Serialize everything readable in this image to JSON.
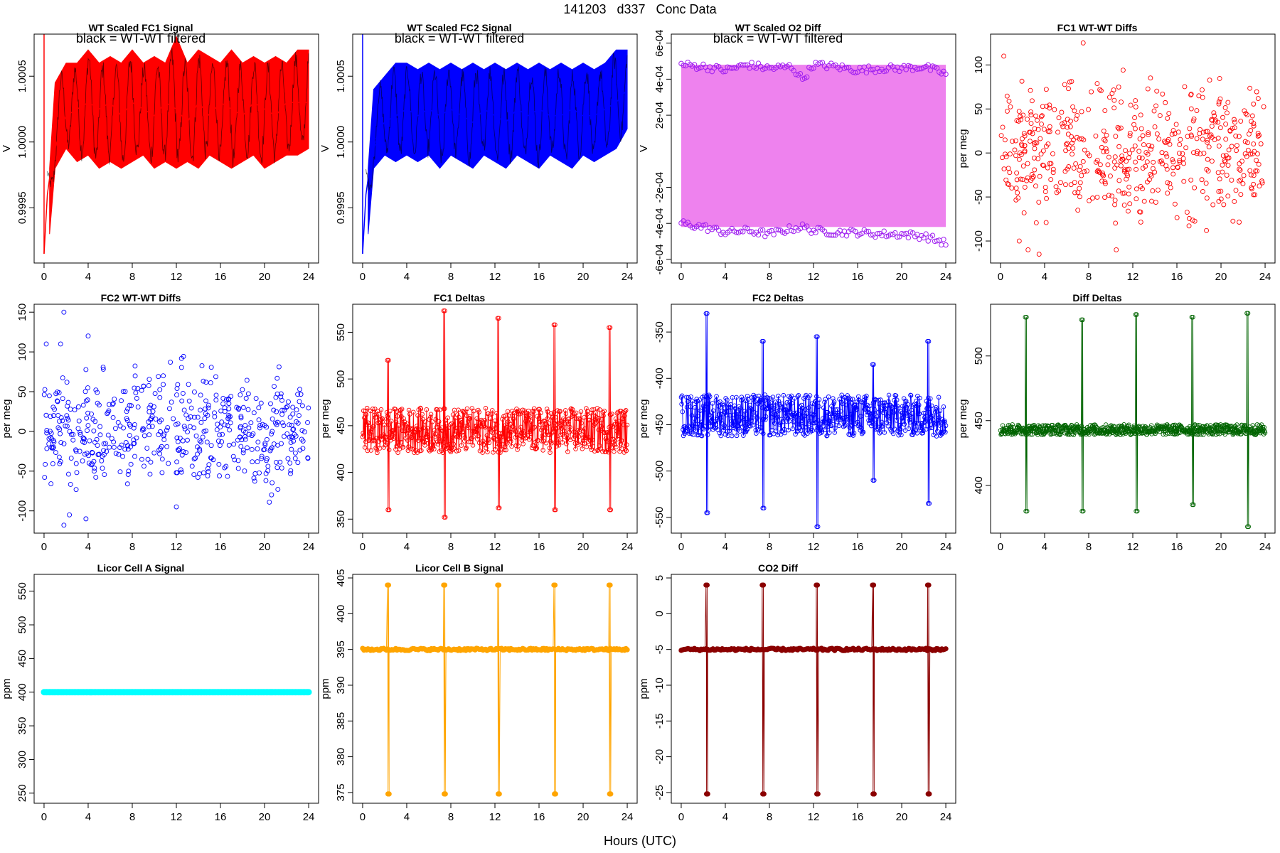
{
  "figure": {
    "title": "141203   d337   Conc Data",
    "xlabel": "Hours (UTC)"
  },
  "chart_data": [
    {
      "type": "line",
      "title": "WT Scaled FC1 Signal",
      "annotation": "black = WT-WT filtered",
      "ylabel": "V",
      "color": "#ff0000",
      "xticks": [
        0,
        4,
        8,
        12,
        16,
        20,
        24
      ],
      "yticks": [
        0.9995,
        1.0,
        1.0005
      ],
      "ytick_labels": [
        "0.9995",
        "1.0000",
        "1.0005"
      ],
      "xlim": [
        -0.9,
        24.9
      ],
      "ylim": [
        0.99908,
        1.00082
      ],
      "series": [
        {
          "x": [
            0,
            0.3,
            0.7,
            1,
            1.5,
            2,
            3,
            4,
            5,
            6,
            7,
            8,
            9,
            10,
            11,
            12,
            13,
            14,
            15,
            16,
            17,
            18,
            19,
            20,
            21,
            22,
            23,
            24
          ],
          "y": [
            0.99915,
            0.9996,
            0.99985,
            0.99995,
            1.0001,
            1.0002,
            1.00025,
            1.0003,
            1.00025,
            1.0003,
            1.0002,
            1.0003,
            1.00025,
            1.0002,
            1.0003,
            1.00025,
            1.00015,
            1.0003,
            1.0002,
            1.0003,
            1.00025,
            1.0002,
            1.0003,
            1.00025,
            1.0002,
            1.0003,
            1.0003,
            1.0003
          ]
        }
      ],
      "envelope": {
        "x": [
          0.5,
          1,
          2,
          3,
          4,
          5,
          6,
          7,
          8,
          9,
          10,
          11,
          12,
          13,
          14,
          15,
          16,
          17,
          18,
          19,
          20,
          21,
          22,
          23,
          24
        ],
        "upper": [
          0.9998,
          1.00045,
          1.0006,
          1.0006,
          1.0007,
          1.0006,
          1.00065,
          1.0006,
          1.0007,
          1.0006,
          1.00065,
          1.0006,
          1.0008,
          1.0006,
          1.0007,
          1.00065,
          1.0006,
          1.0007,
          1.0006,
          1.00065,
          1.0006,
          1.00065,
          1.0006,
          1.0007,
          1.0007
        ],
        "lower": [
          0.9993,
          0.9998,
          0.99995,
          0.99985,
          0.9999,
          0.9998,
          0.99985,
          0.9998,
          0.99985,
          0.9999,
          0.9998,
          0.99985,
          0.9998,
          0.99985,
          0.9998,
          0.9999,
          0.99985,
          0.9998,
          0.99985,
          0.9999,
          0.9998,
          0.99985,
          0.9999,
          0.9999,
          0.99995
        ]
      }
    },
    {
      "type": "line",
      "title": "WT Scaled FC2 Signal",
      "annotation": "black = WT-WT filtered",
      "ylabel": "V",
      "color": "#0000ff",
      "xticks": [
        0,
        4,
        8,
        12,
        16,
        20,
        24
      ],
      "yticks": [
        0.9995,
        1.0,
        1.0005
      ],
      "ytick_labels": [
        "0.9995",
        "1.0000",
        "1.0005"
      ],
      "xlim": [
        -0.9,
        24.9
      ],
      "ylim": [
        0.99908,
        1.00082
      ],
      "series": [
        {
          "x": [
            0,
            0.3,
            0.7,
            1,
            1.5,
            2,
            3,
            4,
            5,
            6,
            7,
            8,
            9,
            10,
            11,
            12,
            13,
            14,
            15,
            16,
            17,
            18,
            19,
            20,
            21,
            22,
            23,
            24
          ],
          "y": [
            0.99915,
            0.9996,
            0.99985,
            0.99995,
            1.0001,
            1.00015,
            1.0002,
            1.00025,
            1.0002,
            1.00025,
            1.0002,
            1.00025,
            1.0002,
            1.00015,
            1.00025,
            1.0002,
            1.00015,
            1.00025,
            1.0002,
            1.00025,
            1.0002,
            1.0002,
            1.00025,
            1.0002,
            1.0002,
            1.00025,
            1.0003,
            1.0004
          ]
        }
      ],
      "envelope": {
        "x": [
          0.5,
          1,
          2,
          3,
          4,
          5,
          6,
          7,
          8,
          9,
          10,
          11,
          12,
          13,
          14,
          15,
          16,
          17,
          18,
          19,
          20,
          21,
          22,
          23,
          24
        ],
        "upper": [
          0.9998,
          1.0004,
          1.0005,
          1.0006,
          1.0006,
          1.00055,
          1.0006,
          1.00055,
          1.0006,
          1.00055,
          1.0006,
          1.00055,
          1.0006,
          1.00055,
          1.0006,
          1.00055,
          1.0006,
          1.00055,
          1.0006,
          1.00055,
          1.0006,
          1.00055,
          1.0006,
          1.0007,
          1.0007
        ],
        "lower": [
          0.9993,
          0.9998,
          0.9999,
          0.99985,
          0.9999,
          0.99985,
          0.9999,
          0.9998,
          0.9999,
          0.99985,
          0.9998,
          0.9999,
          0.99985,
          0.9998,
          0.9999,
          0.99985,
          0.9998,
          0.9999,
          0.99985,
          0.9998,
          0.9999,
          0.99985,
          0.9999,
          0.99995,
          1.0001
        ]
      }
    },
    {
      "type": "line",
      "title": "WT Scaled O2 Diff",
      "annotation": "black = WT-WT filtered",
      "ylabel": "V",
      "color": "#ee82ee",
      "point_color": "#a020f0",
      "xticks": [
        0,
        4,
        8,
        12,
        16,
        20,
        24
      ],
      "yticks": [
        -0.0006,
        -0.0004,
        -0.0002,
        0.0002,
        0.0004,
        0.0006
      ],
      "ytick_labels": [
        "-6e-04",
        "-4e-04",
        "-2e-04",
        "2e-04",
        "4e-04",
        "6e-04"
      ],
      "xlim": [
        -0.9,
        24.9
      ],
      "ylim": [
        -0.00062,
        0.00065
      ],
      "band": [
        -0.00042,
        0.00048
      ],
      "series": [
        {
          "name": "upper",
          "x": [
            0,
            2,
            4,
            6,
            8,
            10,
            11,
            12,
            14,
            16,
            18,
            20,
            22,
            24
          ],
          "y": [
            0.00048,
            0.00047,
            0.00045,
            0.00048,
            0.00046,
            0.00047,
            0.0004,
            0.00048,
            0.00047,
            0.00045,
            0.00046,
            0.00046,
            0.00047,
            0.00043
          ]
        },
        {
          "name": "lower",
          "x": [
            0,
            2,
            4,
            6,
            8,
            10,
            11,
            12,
            14,
            16,
            18,
            20,
            22,
            24
          ],
          "y": [
            -0.0004,
            -0.00042,
            -0.00045,
            -0.00044,
            -0.00046,
            -0.00043,
            -0.00042,
            -0.00044,
            -0.00045,
            -0.00045,
            -0.00046,
            -0.00046,
            -0.00047,
            -0.00051
          ]
        }
      ]
    },
    {
      "type": "scatter",
      "title": "FC1 WT-WT Diffs",
      "ylabel": "per meg",
      "color": "#ff0000",
      "xticks": [
        0,
        4,
        8,
        12,
        16,
        20,
        24
      ],
      "yticks": [
        -100,
        -50,
        0,
        50,
        100
      ],
      "ytick_labels": [
        "-100",
        "-50",
        "0",
        "50",
        "100"
      ],
      "xlim": [
        -0.9,
        24.9
      ],
      "ylim": [
        -125,
        135
      ],
      "scatter_range": [
        -80,
        80
      ],
      "highlights": [
        {
          "x": 0.3,
          "y": 110
        },
        {
          "x": 7.5,
          "y": 125
        },
        {
          "x": 1.7,
          "y": -100
        },
        {
          "x": 2.5,
          "y": -110
        },
        {
          "x": 3.5,
          "y": -115
        },
        {
          "x": 10.5,
          "y": -110
        }
      ]
    },
    {
      "type": "scatter",
      "title": "FC2 WT-WT Diffs",
      "ylabel": "per meg",
      "color": "#0000ff",
      "xticks": [
        0,
        4,
        8,
        12,
        16,
        20,
        24
      ],
      "yticks": [
        -100,
        -50,
        0,
        50,
        100,
        150
      ],
      "ytick_labels": [
        "-100",
        "-50",
        "0",
        "50",
        "100",
        "150"
      ],
      "xlim": [
        -0.9,
        24.9
      ],
      "ylim": [
        -128,
        160
      ],
      "scatter_range": [
        -75,
        80
      ],
      "highlights": [
        {
          "x": 1.8,
          "y": 150
        },
        {
          "x": 4,
          "y": 120
        },
        {
          "x": 0.2,
          "y": 110
        },
        {
          "x": 1.5,
          "y": 110
        },
        {
          "x": 1.8,
          "y": -118
        },
        {
          "x": 2.3,
          "y": -105
        },
        {
          "x": 3.8,
          "y": -110
        },
        {
          "x": 12,
          "y": -95
        }
      ]
    },
    {
      "type": "line",
      "title": "FC1 Deltas",
      "ylabel": "per meg",
      "color": "#ff0000",
      "xticks": [
        0,
        4,
        8,
        12,
        16,
        20,
        24
      ],
      "yticks": [
        350,
        400,
        450,
        500,
        550
      ],
      "ytick_labels": [
        "350",
        "400",
        "450",
        "500",
        "550"
      ],
      "xlim": [
        -0.9,
        24.9
      ],
      "ylim": [
        335,
        580
      ],
      "baseline": 445,
      "noise": 30,
      "spikes": [
        {
          "x": 2.3,
          "hi": 520,
          "lo": 360
        },
        {
          "x": 7.4,
          "hi": 573,
          "lo": 352
        },
        {
          "x": 12.3,
          "hi": 565,
          "lo": 362
        },
        {
          "x": 17.4,
          "hi": 558,
          "lo": 360
        },
        {
          "x": 22.4,
          "hi": 555,
          "lo": 360
        }
      ]
    },
    {
      "type": "line",
      "title": "FC2 Deltas",
      "ylabel": "per meg",
      "color": "#0000ff",
      "xticks": [
        0,
        4,
        8,
        12,
        16,
        20,
        24
      ],
      "yticks": [
        -550,
        -500,
        -450,
        -400,
        -350
      ],
      "ytick_labels": [
        "-550",
        "-500",
        "-450",
        "-400",
        "-350"
      ],
      "xlim": [
        -0.9,
        24.9
      ],
      "ylim": [
        -567,
        -320
      ],
      "baseline": -440,
      "noise": 28,
      "spikes": [
        {
          "x": 2.3,
          "hi": -330,
          "lo": -545
        },
        {
          "x": 7.4,
          "hi": -360,
          "lo": -540
        },
        {
          "x": 12.3,
          "hi": -355,
          "lo": -560
        },
        {
          "x": 17.4,
          "hi": -385,
          "lo": -510
        },
        {
          "x": 22.4,
          "hi": -360,
          "lo": -535
        }
      ]
    },
    {
      "type": "line",
      "title": "Diff Deltas",
      "ylabel": "per meg",
      "color": "#006400",
      "xticks": [
        0,
        4,
        8,
        12,
        16,
        20,
        24
      ],
      "yticks": [
        400,
        450,
        500
      ],
      "ytick_labels": [
        "400",
        "450",
        "500"
      ],
      "xlim": [
        -0.9,
        24.9
      ],
      "ylim": [
        363,
        540
      ],
      "baseline": 443,
      "noise": 5,
      "spikes": [
        {
          "x": 2.3,
          "hi": 530,
          "lo": 380
        },
        {
          "x": 7.4,
          "hi": 528,
          "lo": 380
        },
        {
          "x": 12.3,
          "hi": 532,
          "lo": 380
        },
        {
          "x": 17.4,
          "hi": 530,
          "lo": 385
        },
        {
          "x": 22.4,
          "hi": 533,
          "lo": 368
        }
      ]
    },
    {
      "type": "line",
      "title": "Licor Cell A Signal",
      "ylabel": "ppm",
      "color": "#00ffff",
      "xticks": [
        0,
        4,
        8,
        12,
        16,
        20,
        24
      ],
      "yticks": [
        250,
        300,
        350,
        400,
        450,
        500,
        550
      ],
      "ytick_labels": [
        "250",
        "300",
        "350",
        "400",
        "450",
        "500",
        "550"
      ],
      "xlim": [
        -0.9,
        24.9
      ],
      "ylim": [
        235,
        575
      ],
      "series": [
        {
          "x": [
            0,
            24
          ],
          "y": [
            400,
            400
          ]
        }
      ]
    },
    {
      "type": "line",
      "title": "Licor Cell B Signal",
      "ylabel": "ppm",
      "color": "#ffa500",
      "xticks": [
        0,
        4,
        8,
        12,
        16,
        20,
        24
      ],
      "yticks": [
        375,
        380,
        385,
        390,
        395,
        400,
        405
      ],
      "ytick_labels": [
        "375",
        "380",
        "385",
        "390",
        "395",
        "400",
        "405"
      ],
      "xlim": [
        -0.9,
        24.9
      ],
      "ylim": [
        373.5,
        405.5
      ],
      "baseline": 395,
      "spikes": [
        {
          "x": 2.3,
          "hi": 404,
          "lo": 374.8
        },
        {
          "x": 7.4,
          "hi": 404,
          "lo": 374.8
        },
        {
          "x": 12.3,
          "hi": 404,
          "lo": 374.8
        },
        {
          "x": 17.4,
          "hi": 404,
          "lo": 374.8
        },
        {
          "x": 22.4,
          "hi": 404,
          "lo": 374.8
        }
      ]
    },
    {
      "type": "line",
      "title": "CO2 Diff",
      "ylabel": "ppm",
      "color": "#8b0000",
      "xticks": [
        0,
        4,
        8,
        12,
        16,
        20,
        24
      ],
      "yticks": [
        -25,
        -20,
        -15,
        -10,
        -5,
        0,
        5
      ],
      "ytick_labels": [
        "-25",
        "-20",
        "-15",
        "-10",
        "-5",
        "0",
        "5"
      ],
      "xlim": [
        -0.9,
        24.9
      ],
      "ylim": [
        -26.5,
        5.5
      ],
      "baseline": -5,
      "spikes": [
        {
          "x": 2.3,
          "hi": 4,
          "lo": -25.2
        },
        {
          "x": 7.4,
          "hi": 4,
          "lo": -25.2
        },
        {
          "x": 12.3,
          "hi": 4,
          "lo": -25.2
        },
        {
          "x": 17.4,
          "hi": 4,
          "lo": -25.2
        },
        {
          "x": 22.4,
          "hi": 4,
          "lo": -25.2
        }
      ]
    }
  ]
}
